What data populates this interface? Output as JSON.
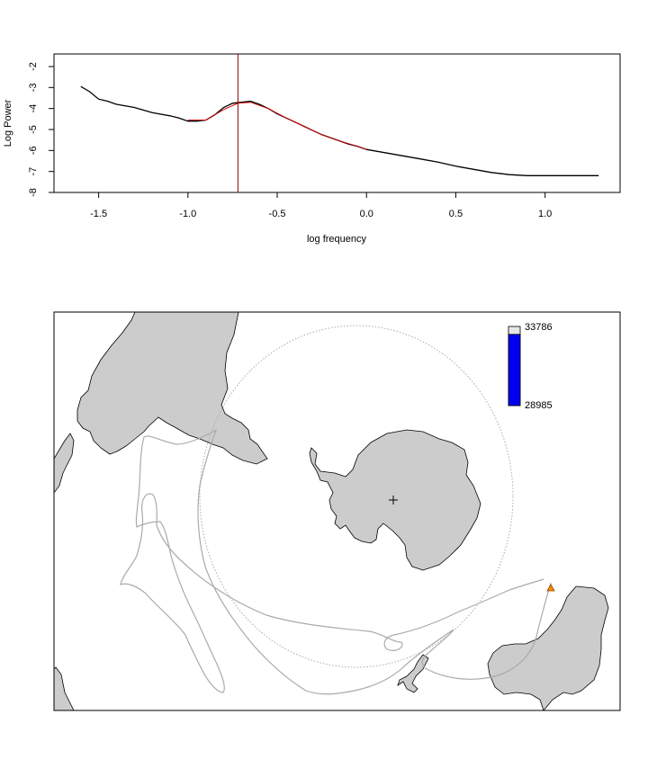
{
  "chart_data": [
    {
      "type": "line",
      "title": "",
      "xlabel": "log frequency",
      "ylabel": "Log Power",
      "xlim": [
        -1.75,
        1.42
      ],
      "ylim": [
        -8,
        -1.4
      ],
      "x_ticks": [
        -1.5,
        -1.0,
        -0.5,
        0.0,
        0.5,
        1.0
      ],
      "x_tick_labels": [
        "-1.5",
        "-1.0",
        "-0.5",
        "0.0",
        "0.5",
        "1.0"
      ],
      "y_ticks": [
        -8,
        -7,
        -6,
        -5,
        -4,
        -3,
        -2
      ],
      "y_tick_labels": [
        "-8",
        "-7",
        "-6",
        "-5",
        "-4",
        "-3",
        "-2"
      ],
      "vline_x": -0.72,
      "series": [
        {
          "color": "#000000",
          "x": [
            -1.6,
            -1.55,
            -1.5,
            -1.45,
            -1.4,
            -1.3,
            -1.2,
            -1.1,
            -1.05,
            -1.0,
            -0.95,
            -0.9,
            -0.85,
            -0.8,
            -0.75,
            -0.7,
            -0.65,
            -0.6,
            -0.55,
            -0.5,
            -0.45,
            -0.4,
            -0.35,
            -0.3,
            -0.25,
            -0.2,
            -0.15,
            -0.1,
            -0.05,
            0.0,
            0.1,
            0.2,
            0.3,
            0.4,
            0.5,
            0.6,
            0.7,
            0.8,
            0.9,
            1.0,
            1.1,
            1.2,
            1.3
          ],
          "y": [
            -2.95,
            -3.2,
            -3.55,
            -3.65,
            -3.8,
            -3.95,
            -4.2,
            -4.35,
            -4.45,
            -4.6,
            -4.6,
            -4.55,
            -4.3,
            -3.95,
            -3.75,
            -3.7,
            -3.65,
            -3.8,
            -4.0,
            -4.25,
            -4.45,
            -4.65,
            -4.85,
            -5.05,
            -5.25,
            -5.4,
            -5.55,
            -5.7,
            -5.8,
            -5.95,
            -6.1,
            -6.25,
            -6.4,
            -6.55,
            -6.75,
            -6.9,
            -7.05,
            -7.15,
            -7.2,
            -7.2,
            -7.2,
            -7.2,
            -7.2
          ]
        },
        {
          "color": "#cc0000",
          "x": [
            -1.0,
            -0.9,
            -0.8,
            -0.72,
            -0.65,
            -0.55,
            -0.45,
            -0.35,
            -0.25,
            -0.15,
            -0.05,
            0.0
          ],
          "y": [
            -4.55,
            -4.55,
            -4.05,
            -3.75,
            -3.7,
            -4.0,
            -4.45,
            -4.85,
            -5.25,
            -5.55,
            -5.8,
            -5.95
          ]
        }
      ]
    },
    {
      "type": "map",
      "title": "",
      "colorbar": {
        "max_label": "33786",
        "min_label": "28985",
        "fill_color": "#0000ee",
        "fill_fraction": 0.9
      },
      "colors": {
        "land": "#cccccc",
        "track": "#aaaaaa",
        "marker": "#ff8800"
      }
    }
  ]
}
